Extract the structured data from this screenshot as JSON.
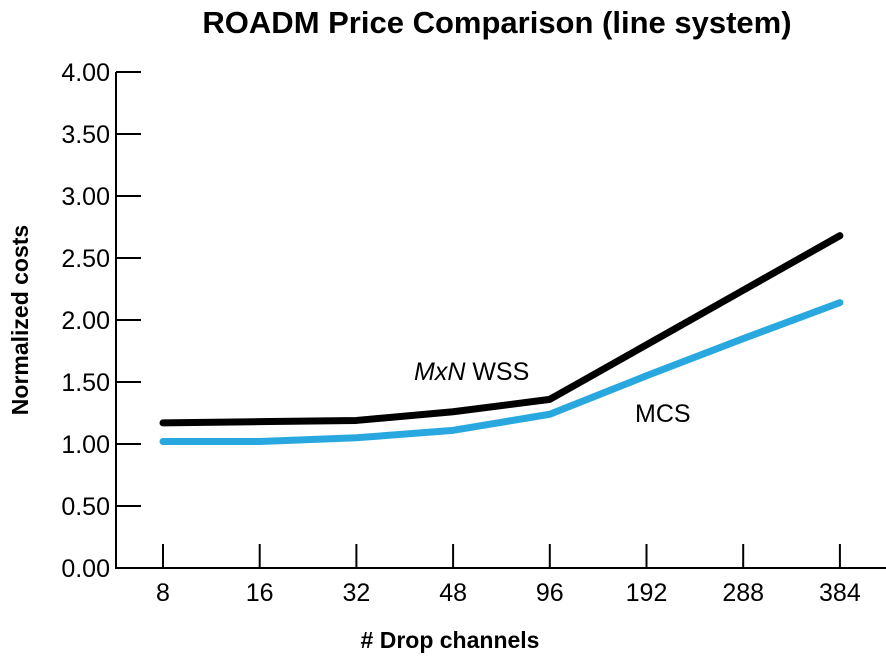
{
  "chart_data": {
    "type": "line",
    "title": "ROADM Price Comparison (line system)",
    "xlabel": "# Drop channels",
    "ylabel": "Normalized costs",
    "categories": [
      "8",
      "16",
      "32",
      "48",
      "96",
      "192",
      "288",
      "384"
    ],
    "ylim": [
      0,
      4
    ],
    "yticks": [
      "0.00",
      "0.50",
      "1.00",
      "1.50",
      "2.00",
      "2.50",
      "3.00",
      "3.50",
      "4.00"
    ],
    "grid": false,
    "series": [
      {
        "name": "MxN WSS",
        "color": "#000000",
        "values": [
          1.17,
          1.18,
          1.19,
          1.26,
          1.36,
          1.8,
          2.24,
          2.68
        ]
      },
      {
        "name": "MCS",
        "color": "#29a8e0",
        "values": [
          1.02,
          1.02,
          1.05,
          1.11,
          1.24,
          1.55,
          1.85,
          2.14
        ]
      }
    ],
    "annotations": {
      "mxn_prefix": "MxN",
      "mxn_suffix": " WSS",
      "mcs": "MCS"
    }
  }
}
